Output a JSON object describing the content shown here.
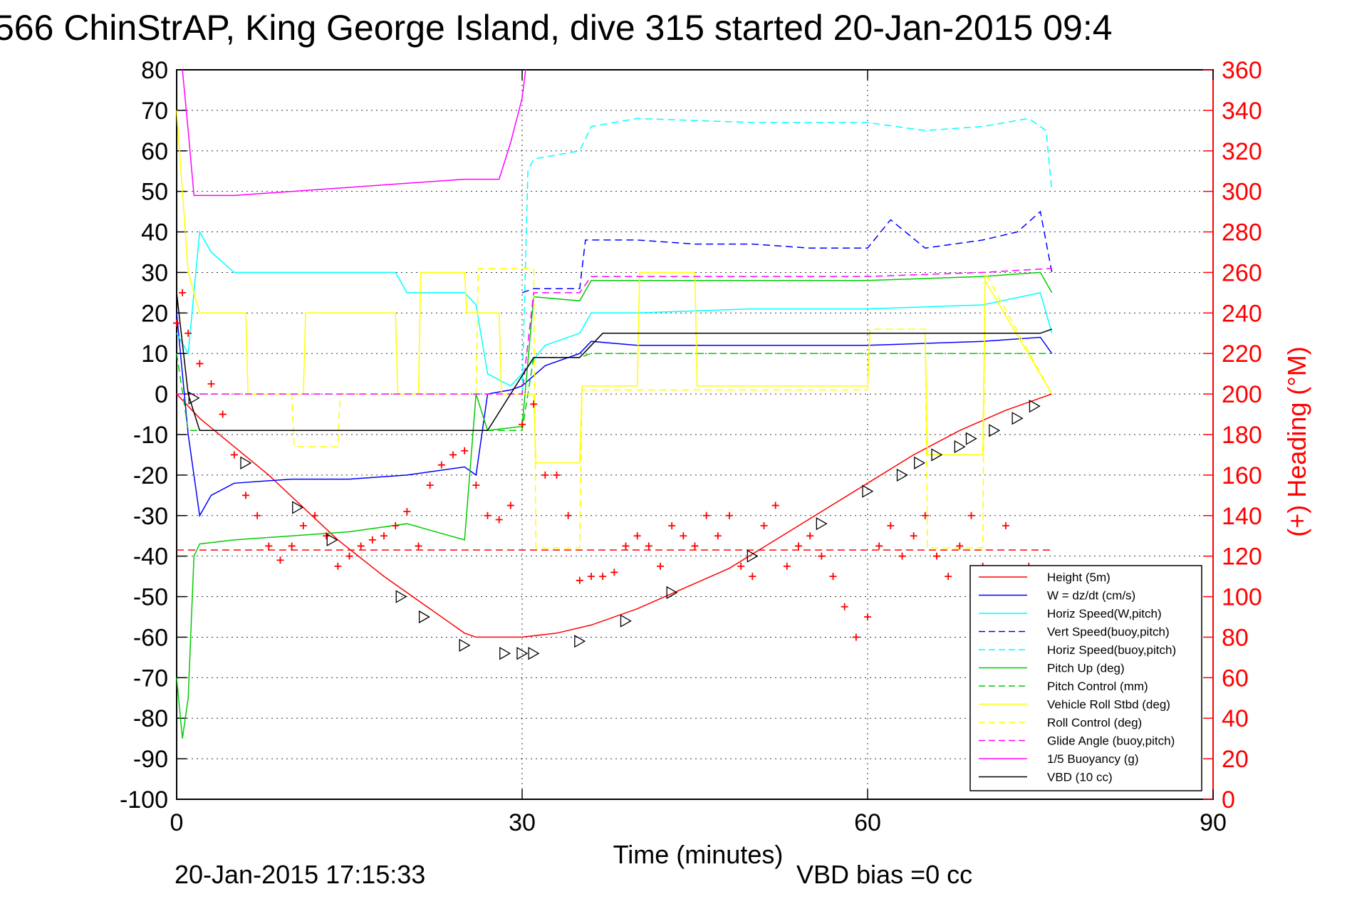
{
  "chart_data": {
    "type": "line",
    "title": "566 ChinStrAP, King George Island, dive 315 started 20-Jan-2015 09:4",
    "xlabel": "Time (minutes)",
    "ylabel_right": "(+) Heading (°M)",
    "xlim": [
      0,
      90
    ],
    "ylim": [
      -100,
      80
    ],
    "ylim_right": [
      0,
      360
    ],
    "xticks": [
      "0",
      "30",
      "60",
      "90"
    ],
    "yticks": [
      "80",
      "70",
      "60",
      "50",
      "40",
      "30",
      "20",
      "10",
      "0",
      "-10",
      "-20",
      "-30",
      "-40",
      "-50",
      "-60",
      "-70",
      "-80",
      "-90",
      "-100"
    ],
    "yticks_right": [
      "360",
      "340",
      "320",
      "300",
      "280",
      "260",
      "240",
      "220",
      "200",
      "180",
      "160",
      "140",
      "120",
      "100",
      "80",
      "60",
      "40",
      "20",
      "0"
    ],
    "grid": "dotted",
    "legend_position": "bottom-right",
    "footer_left": "20-Jan-2015 17:15:33",
    "footer_right": "VBD bias =0 cc",
    "series": [
      {
        "name": "Height (5m)",
        "color": "#ff0000",
        "style": "solid",
        "x": [
          0,
          2,
          5,
          8,
          11,
          14,
          18,
          22,
          25,
          26,
          28,
          30,
          33,
          36,
          40,
          44,
          48,
          52,
          56,
          60,
          64,
          68,
          72,
          76
        ],
        "y": [
          0,
          -6,
          -13,
          -20,
          -28,
          -36,
          -45,
          -53,
          -59,
          -60,
          -60,
          -60,
          -59,
          -57,
          -53,
          -48,
          -43,
          -36,
          -29,
          -22,
          -15,
          -9,
          -4,
          0
        ]
      },
      {
        "name": "W = dz/dt (cm/s)",
        "color": "#0000ff",
        "style": "solid",
        "x": [
          0,
          1,
          2,
          3,
          5,
          10,
          15,
          20,
          25,
          26,
          27,
          29,
          30,
          32,
          35,
          36,
          40,
          50,
          60,
          70,
          75,
          76
        ],
        "y": [
          20,
          -10,
          -30,
          -25,
          -22,
          -21,
          -21,
          -20,
          -18,
          -20,
          0,
          1,
          2,
          7,
          10,
          13,
          12,
          12,
          12,
          13,
          14,
          10
        ]
      },
      {
        "name": "Horiz Speed(W,pitch)",
        "color": "#00ffff",
        "style": "solid",
        "x": [
          0,
          1,
          2,
          3,
          5,
          10,
          15,
          19,
          20,
          25,
          26,
          27,
          29,
          30,
          32,
          35,
          36,
          40,
          50,
          60,
          70,
          75,
          76
        ],
        "y": [
          15,
          10,
          40,
          35,
          30,
          30,
          30,
          30,
          25,
          25,
          22,
          5,
          2,
          5,
          12,
          15,
          20,
          20,
          21,
          21,
          22,
          25,
          15
        ]
      },
      {
        "name": "Vert Speed(buoy,pitch)",
        "color": "#0000ff",
        "style": "dashed",
        "x": [
          30,
          31,
          35,
          35.5,
          40,
          45,
          50,
          55,
          60,
          62,
          65,
          70,
          73,
          75,
          76
        ],
        "y": [
          25,
          26,
          26,
          38,
          38,
          37,
          37,
          36,
          36,
          43,
          36,
          38,
          40,
          45,
          30
        ]
      },
      {
        "name": "Horiz Speed(buoy,pitch)",
        "color": "#00ffff",
        "style": "dashed",
        "x": [
          30,
          30.5,
          31,
          35,
          36,
          40,
          50,
          60,
          65,
          70,
          74,
          75.5,
          76
        ],
        "y": [
          0,
          55,
          58,
          60,
          66,
          68,
          67,
          67,
          65,
          66,
          68,
          65,
          50
        ]
      },
      {
        "name": "Pitch Up (deg)",
        "color": "#00cc00",
        "style": "solid",
        "x": [
          0,
          0.5,
          1,
          1.5,
          2,
          5,
          10,
          15,
          20,
          25,
          26,
          27,
          30,
          31,
          35,
          36,
          40,
          50,
          60,
          70,
          75,
          76
        ],
        "y": [
          -70,
          -85,
          -75,
          -40,
          -37,
          -36,
          -35,
          -34,
          -32,
          -36,
          0,
          -9,
          -8,
          24,
          23,
          28,
          28,
          28,
          28,
          29,
          30,
          25
        ]
      },
      {
        "name": "Pitch Control (mm)",
        "color": "#00cc00",
        "style": "dashed",
        "x": [
          0,
          1,
          2,
          27,
          30,
          31,
          35,
          36,
          76
        ],
        "y": [
          10,
          -9,
          -9,
          -9,
          -9,
          9,
          9,
          10,
          10
        ]
      },
      {
        "name": "Vehicle Roll Stbd (deg)",
        "color": "#ffff00",
        "style": "solid",
        "x": [
          0,
          1,
          2,
          3,
          6,
          6.2,
          11,
          11.2,
          19,
          19.2,
          21,
          21.2,
          25,
          25.2,
          28,
          28.2,
          31,
          31.2,
          35,
          35.2,
          40,
          40.2,
          45,
          45.2,
          60,
          60.2,
          65,
          65.2,
          70,
          70.2,
          76
        ],
        "y": [
          70,
          30,
          20,
          20,
          20,
          0,
          0,
          20,
          20,
          0,
          0,
          30,
          30,
          20,
          20,
          0,
          0,
          -17,
          -17,
          2,
          2,
          30,
          30,
          2,
          2,
          15,
          15,
          -15,
          -15,
          28,
          0
        ]
      },
      {
        "name": "Roll Control (deg)",
        "color": "#ffff00",
        "style": "dashed",
        "x": [
          0,
          2,
          10,
          10.2,
          14,
          14.2,
          26,
          26.2,
          31,
          31.2,
          35,
          35.2,
          60,
          60.2,
          65,
          65.2,
          70,
          70.2,
          76
        ],
        "y": [
          0,
          0,
          0,
          -13,
          -13,
          0,
          0,
          31,
          31,
          -38,
          -38,
          1,
          1,
          16,
          16,
          -38,
          -38,
          30,
          0
        ]
      },
      {
        "name": "Glide Angle (buoy,pitch)",
        "color": "#ff00ff",
        "style": "dashed",
        "x": [
          0,
          28,
          30,
          31,
          35,
          36,
          50,
          60,
          70,
          76
        ],
        "y": [
          0,
          0,
          0,
          25,
          25,
          29,
          29,
          29,
          30,
          31
        ]
      },
      {
        "name": "1/5 Buoyancy (g)",
        "color": "#ff00ff",
        "style": "solid",
        "x": [
          0.5,
          1,
          1.5,
          5,
          10,
          15,
          20,
          25,
          28,
          29,
          30,
          30.3
        ],
        "y": [
          80,
          65,
          49,
          49,
          50,
          51,
          52,
          53,
          53,
          62,
          73,
          80
        ]
      },
      {
        "name": "VBD (10 cc)",
        "color": "#000000",
        "style": "solid",
        "x": [
          0,
          1,
          2,
          27,
          29,
          31,
          35,
          36,
          37,
          75,
          76
        ],
        "y": [
          25,
          0,
          -9,
          -9,
          0,
          9,
          9,
          12,
          15,
          15,
          16
        ]
      },
      {
        "name": "",
        "color": "#ff0000",
        "style": "markers-plus",
        "axis": "right",
        "x": [
          0,
          0.5,
          1,
          2,
          3,
          4,
          5,
          6,
          7,
          8,
          9,
          10,
          11,
          12,
          13,
          14,
          15,
          16,
          17,
          18,
          19,
          20,
          21,
          22,
          23,
          24,
          25,
          26,
          27,
          28,
          29,
          30,
          31,
          32,
          33,
          34,
          35,
          36,
          37,
          38,
          39,
          40,
          41,
          42,
          43,
          44,
          45,
          46,
          47,
          48,
          49,
          50,
          51,
          52,
          53,
          54,
          55,
          56,
          57,
          58,
          59,
          60,
          61,
          62,
          63,
          64,
          65,
          66,
          67,
          68,
          69,
          70,
          72,
          74,
          76
        ],
        "y": [
          235,
          250,
          230,
          215,
          205,
          190,
          170,
          150,
          140,
          125,
          118,
          125,
          135,
          140,
          130,
          115,
          120,
          125,
          128,
          130,
          135,
          142,
          125,
          155,
          165,
          170,
          172,
          155,
          140,
          138,
          145,
          185,
          195,
          160,
          160,
          140,
          108,
          110,
          110,
          112,
          125,
          130,
          125,
          115,
          135,
          130,
          125,
          140,
          130,
          140,
          115,
          110,
          135,
          145,
          115,
          125,
          130,
          120,
          110,
          95,
          80,
          90,
          125,
          135,
          120,
          130,
          140,
          120,
          110,
          125,
          140,
          115,
          135,
          115,
          110
        ]
      },
      {
        "name": "",
        "color": "#ff0000",
        "style": "dashed",
        "axis": "right",
        "x": [
          0,
          76
        ],
        "y": [
          123,
          123
        ]
      },
      {
        "name": "",
        "color": "#000000",
        "style": "markers-triangle",
        "x": [
          1.5,
          6,
          10.5,
          13.5,
          19.5,
          21.5,
          25,
          28.5,
          30,
          31,
          35,
          39,
          43,
          50,
          56,
          60,
          63,
          64.5,
          66,
          68,
          69,
          71,
          73,
          74.5
        ],
        "y": [
          -1,
          -17,
          -28,
          -36,
          -50,
          -55,
          -62,
          -64,
          -64,
          -64,
          -61,
          -56,
          -49,
          -40,
          -32,
          -24,
          -20,
          -17,
          -15,
          -13,
          -11,
          -9,
          -6,
          -3
        ]
      }
    ]
  }
}
